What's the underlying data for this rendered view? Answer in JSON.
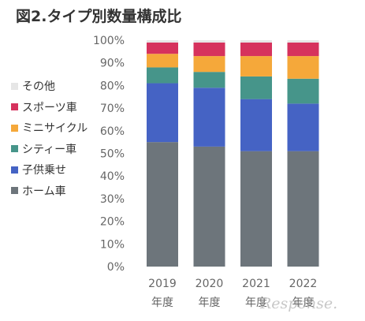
{
  "chart_data": {
    "type": "bar",
    "stacked": true,
    "title": "図2.タイプ別数量構成比",
    "categories": [
      "2019",
      "2020",
      "2021",
      "2022"
    ],
    "category_sublabel": "年度",
    "ylim": [
      0,
      100
    ],
    "yticks": [
      "0%",
      "10%",
      "20%",
      "30%",
      "40%",
      "50%",
      "60%",
      "70%",
      "80%",
      "90%",
      "100%"
    ],
    "grid": false,
    "legend_position": "left",
    "series": [
      {
        "name": "ホーム車",
        "color": "#6d757b",
        "values": [
          55,
          53,
          51,
          51
        ]
      },
      {
        "name": "子供乗せ",
        "color": "#4563c4",
        "values": [
          26,
          26,
          23,
          21
        ]
      },
      {
        "name": "シティー車",
        "color": "#46958a",
        "values": [
          7,
          7,
          10,
          11
        ]
      },
      {
        "name": "ミニサイクル",
        "color": "#f5a83a",
        "values": [
          6,
          7,
          9,
          10
        ]
      },
      {
        "name": "スポーツ車",
        "color": "#d6325d",
        "values": [
          5,
          6,
          6,
          6
        ]
      },
      {
        "name": "その他",
        "color": "#e6e6e6",
        "values": [
          1,
          1,
          1,
          1
        ]
      }
    ]
  },
  "watermark": "Response."
}
